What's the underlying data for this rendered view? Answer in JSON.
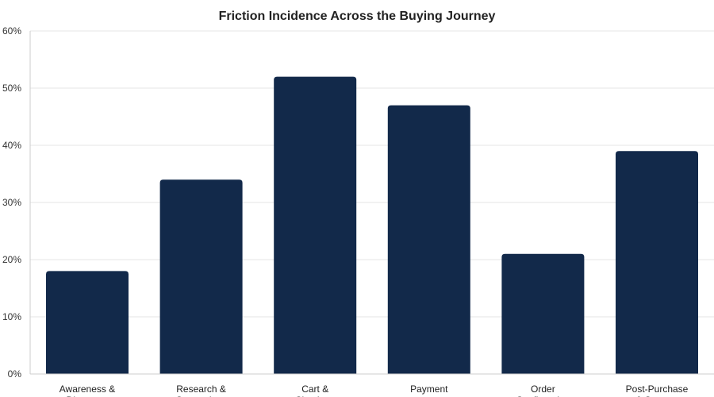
{
  "chart_data": {
    "type": "bar",
    "title": "Friction Incidence Across the Buying Journey",
    "xlabel": "",
    "ylabel": "",
    "categories": [
      [
        "Awareness &",
        "Discovery"
      ],
      [
        "Research &",
        "Comparison"
      ],
      [
        "Cart &",
        "Checkout"
      ],
      [
        "Payment"
      ],
      [
        "Order",
        "Confirmation"
      ],
      [
        "Post-Purchase",
        "& Support"
      ]
    ],
    "values": [
      18,
      34,
      52,
      47,
      21,
      39
    ],
    "ylim": [
      0,
      60
    ],
    "yticks": [
      0,
      10,
      20,
      30,
      40,
      50,
      60
    ],
    "tick_format": "{v}%",
    "grid": true,
    "bar_color": "#12294a",
    "grid_color": "#e6e6e6"
  }
}
